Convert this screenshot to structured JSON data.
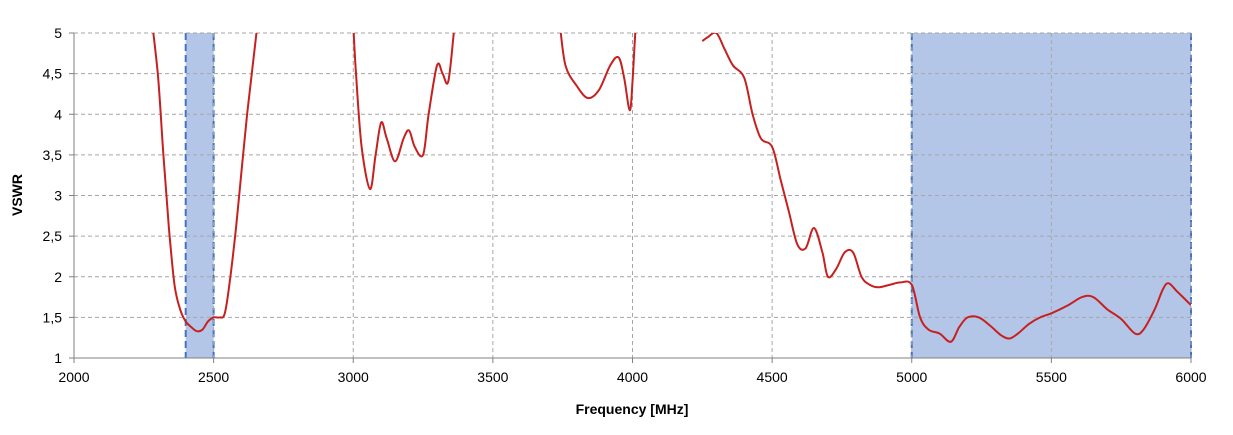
{
  "chart_data": {
    "type": "line",
    "title": "",
    "xlabel": "Frequency [MHz]",
    "ylabel": "VSWR",
    "xlim": [
      2000,
      6000
    ],
    "ylim": [
      1,
      5
    ],
    "x_ticks": [
      2000,
      2500,
      3000,
      3500,
      4000,
      4500,
      5000,
      5500,
      6000
    ],
    "y_ticks": [
      1,
      1.5,
      2,
      2.5,
      3,
      3.5,
      4,
      4.5,
      5
    ],
    "y_tick_labels": [
      "1",
      "1,5",
      "2",
      "2,5",
      "3",
      "3,5",
      "4",
      "4,5",
      "5"
    ],
    "grid": true,
    "highlight_bands": [
      [
        2400,
        2500
      ],
      [
        5000,
        6000
      ]
    ],
    "colors": {
      "line": "#c62020",
      "band": "#b4c6e7",
      "band_border": "#4472c4",
      "grid": "#a6a6a6",
      "axis": "#808080"
    },
    "series": [
      {
        "x": [
          2270,
          2300,
          2320,
          2340,
          2360,
          2380,
          2400,
          2420,
          2440,
          2460,
          2480,
          2500,
          2520,
          2540,
          2560,
          2580,
          2600,
          2620,
          2640,
          2660
        ],
        "y": [
          5.4,
          4.5,
          3.5,
          2.6,
          1.9,
          1.6,
          1.45,
          1.38,
          1.33,
          1.35,
          1.45,
          1.5,
          1.5,
          1.55,
          2.0,
          2.6,
          3.3,
          4.0,
          4.6,
          5.2
        ]
      },
      {
        "x": [
          3000,
          3010,
          3030,
          3060,
          3080,
          3100,
          3120,
          3150,
          3180,
          3200,
          3220,
          3250,
          3270,
          3300,
          3320,
          3340,
          3360,
          3370
        ],
        "y": [
          5.1,
          4.5,
          3.6,
          3.08,
          3.5,
          3.9,
          3.7,
          3.42,
          3.7,
          3.8,
          3.6,
          3.5,
          4.0,
          4.6,
          4.5,
          4.4,
          5.0,
          5.3
        ]
      },
      {
        "x": [
          3740,
          3760,
          3800,
          3840,
          3880,
          3920,
          3950,
          3970,
          3990,
          4000,
          4010,
          4020
        ],
        "y": [
          5.1,
          4.6,
          4.35,
          4.2,
          4.3,
          4.6,
          4.7,
          4.45,
          4.05,
          4.4,
          5.0,
          5.3
        ]
      },
      {
        "x": [
          4250,
          4270,
          4300,
          4330,
          4360,
          4400,
          4430,
          4460,
          4500,
          4530,
          4560,
          4590,
          4620,
          4650,
          4680,
          4700,
          4730,
          4760,
          4790,
          4820,
          4850,
          4880,
          4920,
          4960,
          5000,
          5030,
          5060,
          5100,
          5140,
          5170,
          5200,
          5240,
          5280,
          5320,
          5350,
          5380,
          5420,
          5460,
          5500,
          5560,
          5610,
          5650,
          5700,
          5750,
          5800,
          5830,
          5870,
          5900,
          5920,
          5950,
          6000
        ],
        "y": [
          4.9,
          4.95,
          5.0,
          4.8,
          4.6,
          4.45,
          4.0,
          3.7,
          3.6,
          3.2,
          2.8,
          2.4,
          2.35,
          2.6,
          2.3,
          2.0,
          2.1,
          2.3,
          2.3,
          2.0,
          1.9,
          1.87,
          1.9,
          1.93,
          1.9,
          1.5,
          1.35,
          1.3,
          1.2,
          1.38,
          1.5,
          1.5,
          1.4,
          1.28,
          1.24,
          1.3,
          1.42,
          1.5,
          1.55,
          1.65,
          1.75,
          1.75,
          1.6,
          1.48,
          1.3,
          1.35,
          1.6,
          1.85,
          1.92,
          1.82,
          1.65
        ]
      }
    ]
  }
}
